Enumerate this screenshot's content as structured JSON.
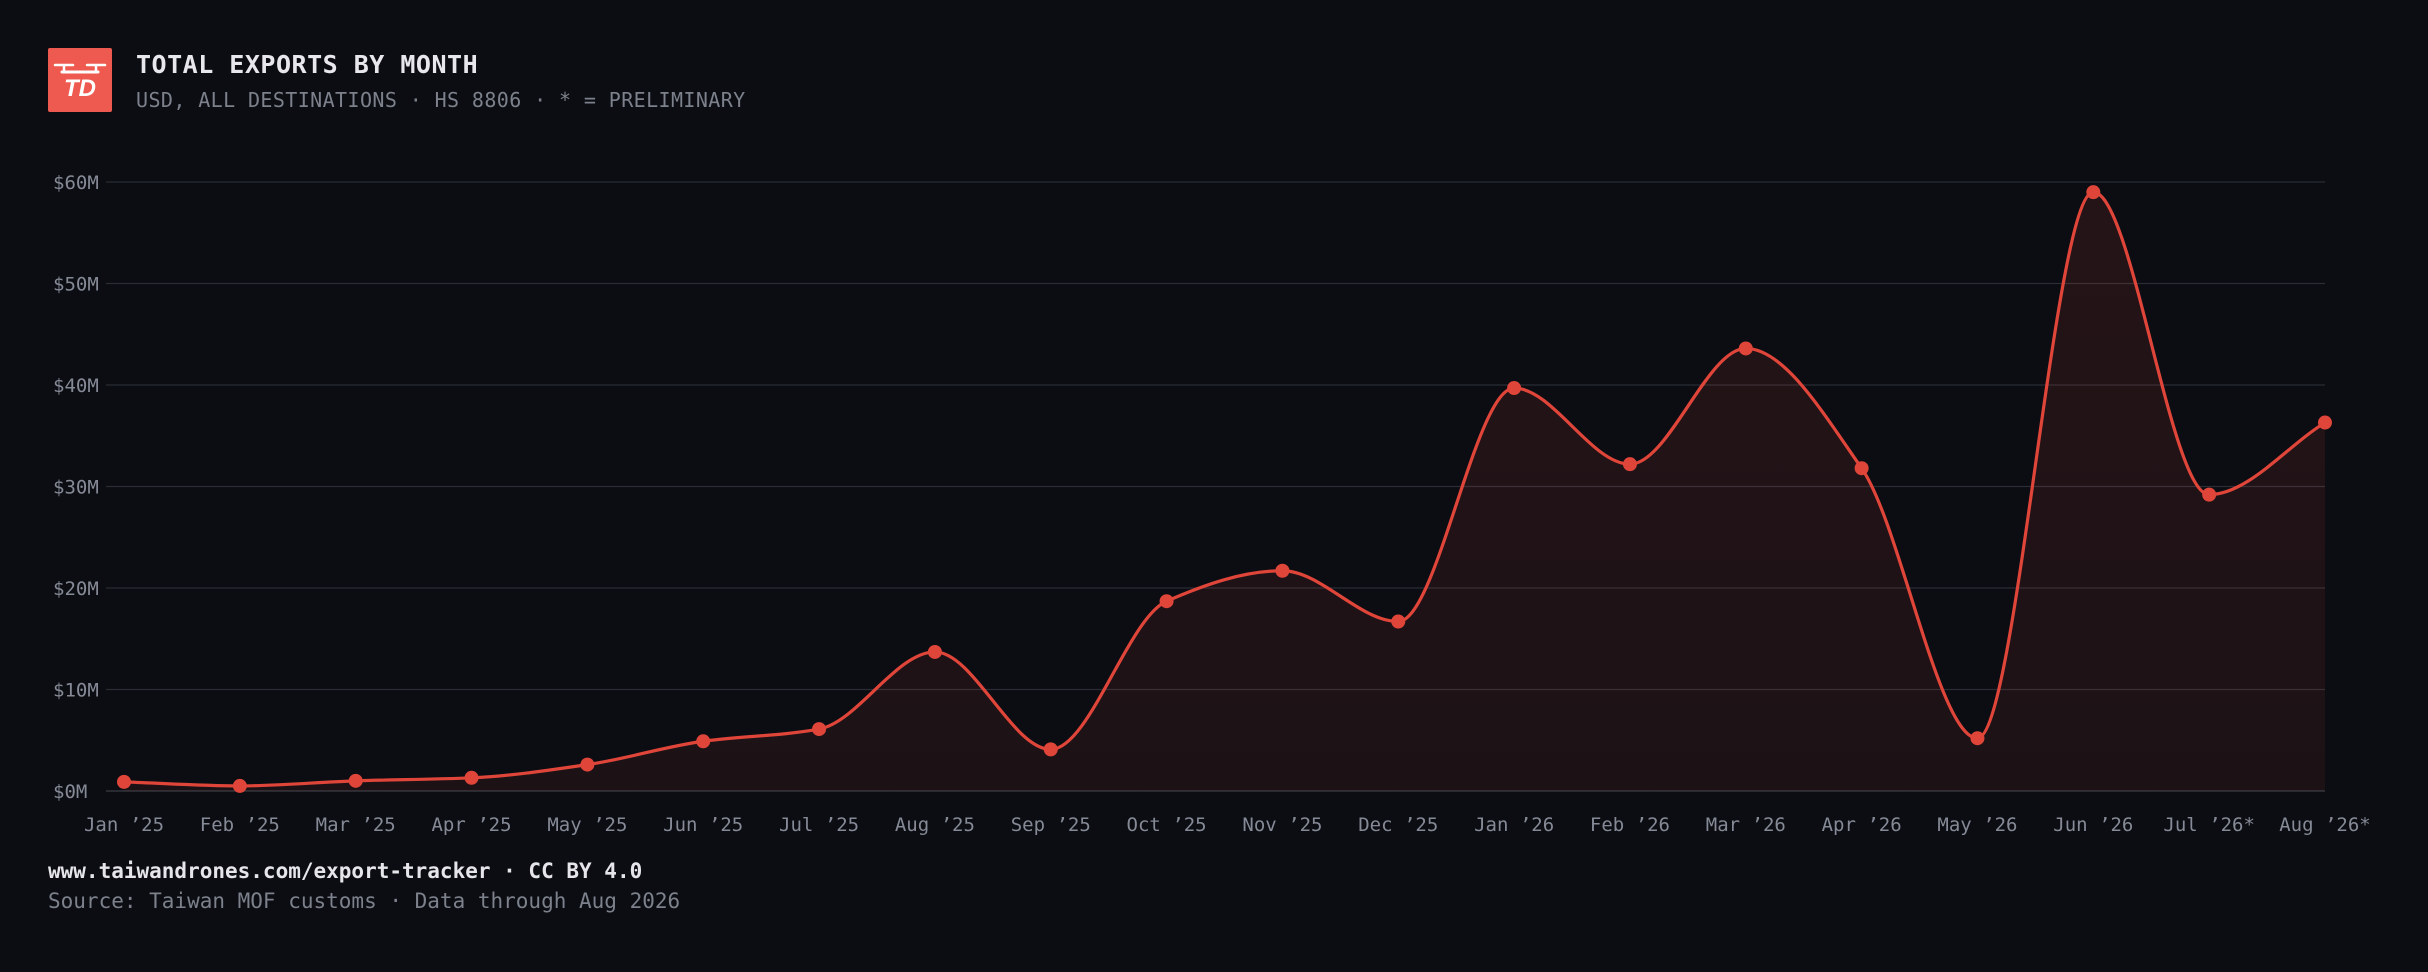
{
  "header": {
    "logo_text": "TD",
    "title": "TOTAL EXPORTS BY MONTH",
    "subtitle": "USD, ALL DESTINATIONS · HS 8806 · * = PRELIMINARY"
  },
  "footer": {
    "link": "www.taiwandrones.com/export-tracker · CC BY 4.0",
    "source": "Source: Taiwan MOF customs · Data through Aug 2026"
  },
  "colors": {
    "background": "#0b0d12",
    "accent": "#e0453a",
    "logo": "#ee5a4f",
    "grid": "#2a2d35"
  },
  "chart_data": {
    "type": "area",
    "categories": [
      "Jan ’25",
      "Feb ’25",
      "Mar ’25",
      "Apr ’25",
      "May ’25",
      "Jun ’25",
      "Jul ’25",
      "Aug ’25",
      "Sep ’25",
      "Oct ’25",
      "Nov ’25",
      "Dec ’25",
      "Jan ’26",
      "Feb ’26",
      "Mar ’26",
      "Apr ’26",
      "May ’26",
      "Jun ’26",
      "Jul ’26*",
      "Aug ’26*"
    ],
    "series": [
      {
        "values": [
          0.9,
          0.5,
          1.0,
          1.3,
          2.6,
          4.9,
          6.1,
          13.7,
          4.1,
          18.7,
          21.7,
          16.7,
          39.7,
          32.2,
          43.6,
          31.8,
          5.2,
          59.0,
          29.2,
          36.3
        ]
      }
    ],
    "yticks": [
      "$0M",
      "$10M",
      "$20M",
      "$30M",
      "$40M",
      "$50M",
      "$60M"
    ],
    "ylim": [
      0,
      60
    ],
    "grid": true,
    "color": "#e0453a"
  }
}
